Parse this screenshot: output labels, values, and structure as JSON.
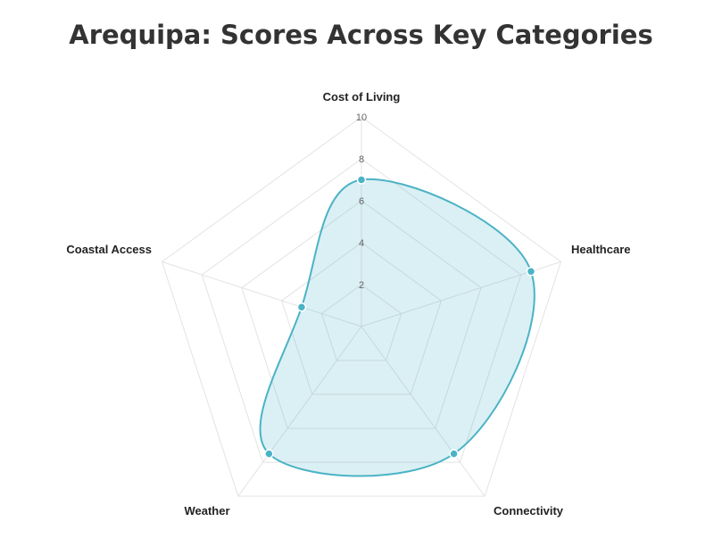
{
  "chart_data": {
    "type": "radar",
    "title": "Arequipa: Scores Across Key Categories",
    "categories": [
      "Cost of Living",
      "Healthcare",
      "Connectivity",
      "Weather",
      "Coastal Access"
    ],
    "series": [
      {
        "values": [
          7,
          8.5,
          7.5,
          7.5,
          3
        ]
      }
    ],
    "rlim": [
      0,
      10
    ],
    "ticks": [
      "2",
      "4",
      "6",
      "8",
      "10"
    ],
    "grid": true,
    "colors": {
      "line": "#4bb3c6",
      "fill": "rgba(75, 179, 198, 0.2)",
      "point": "#4bb3c6",
      "grid": "#e3e3e3"
    }
  }
}
